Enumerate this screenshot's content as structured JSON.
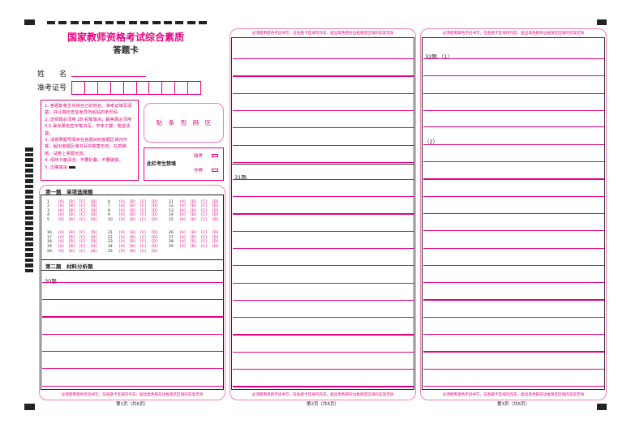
{
  "header": {
    "title": "国家教师资格考试综合素质",
    "subtitle": "答题卡"
  },
  "fields": {
    "name_label": "姓　　名",
    "name_value": "",
    "id_label": "准考证号",
    "id_boxes": 10
  },
  "instructions": [
    "1. 答题前考生先将自己的姓名、准考证填写清楚，并认真检查监考员所粘贴的条形码",
    "2. 选择题必须用 2B 铅笔填涂；解答题必须用 0.5 毫米黑色签字笔书写，字体工整，笔迹清楚。",
    "3. 请按照题号顺序在各题目的答题区域内作答，超出答题区域书写的答案无效；在草稿纸、试卷上答题无效。",
    "4. 保持卡面清洁，不要折叠、不要破损。",
    "5. 正确填涂"
  ],
  "barcode_label": "贴　条　形　码　区",
  "proctor": {
    "label": "此栏考生禁填",
    "absent": "缺考",
    "cheat": "作弊"
  },
  "section1": {
    "title": "第一题　单项选择题",
    "options": [
      "[A]",
      "[B]",
      "[C]",
      "[D]"
    ],
    "groups": [
      [
        1,
        2,
        3,
        4,
        5
      ],
      [
        6,
        7,
        8,
        9,
        10
      ],
      [
        11,
        12,
        13,
        14,
        15
      ],
      [
        16,
        17,
        18,
        19,
        20
      ],
      [
        21,
        22,
        23,
        24,
        25
      ],
      [
        26,
        27,
        28,
        29
      ]
    ]
  },
  "section2": {
    "title": "第二题　材料分析题",
    "q30": "30题."
  },
  "q31": "31题.",
  "q32": {
    "p1": "32题.（1）",
    "p2": "（2）"
  },
  "notice": "必须使用黑色字迹书写，在各题卡区域内作答，超出黑色矩形边框限定区域的答案无效",
  "pages": [
    "第1页（共6页）",
    "第2页（共6页）",
    "第3页（共6页）"
  ],
  "colors": {
    "accent": "#e4007f",
    "border_light": "#f080b8",
    "ink": "#222222"
  }
}
